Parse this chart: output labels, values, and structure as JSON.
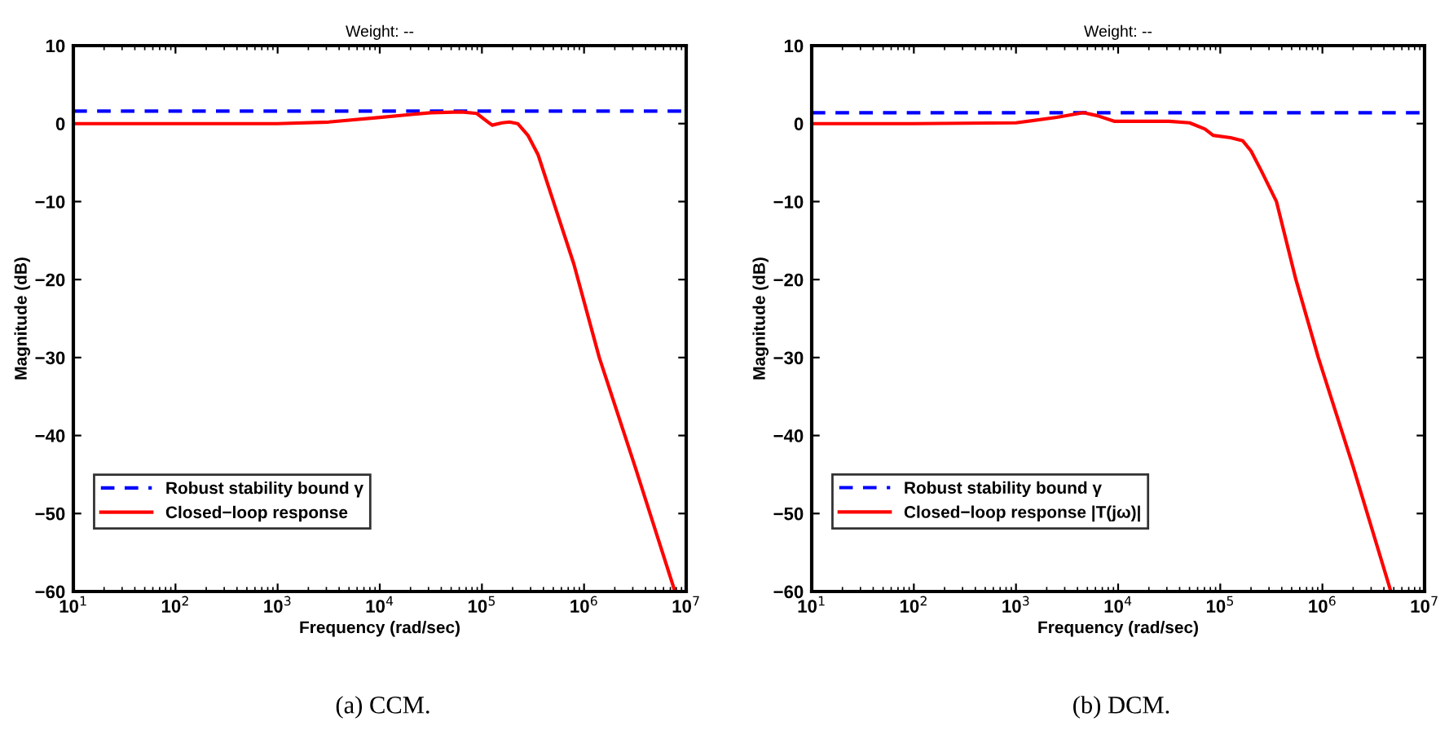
{
  "chart_data": [
    {
      "type": "line",
      "title": "Weight: --",
      "xlabel": "Frequency (rad/sec)",
      "ylabel": "Magnitude (dB)",
      "log": "x",
      "grid": false,
      "legend": "bottom left",
      "xlim": [
        10,
        10000000
      ],
      "ylim": [
        -60,
        10
      ],
      "xticks": [
        {
          "value": 10,
          "label": "10$^{1}$"
        },
        {
          "value": 100,
          "label": "10$^{2}$"
        },
        {
          "value": 1000,
          "label": "10$^{3}$"
        },
        {
          "value": 10000,
          "label": "10$^{4}$"
        },
        {
          "value": 100000,
          "label": "10$^{5}$"
        },
        {
          "value": 1000000,
          "label": "10$^{6}$"
        },
        {
          "value": 10000000,
          "label": "10$^{7}$"
        }
      ],
      "yticks": [
        {
          "value": 10,
          "label": "10"
        },
        {
          "value": 0,
          "label": "0"
        },
        {
          "value": -10,
          "label": "−10"
        },
        {
          "value": -20,
          "label": "−20"
        },
        {
          "value": -30,
          "label": "−30"
        },
        {
          "value": -40,
          "label": "−40"
        },
        {
          "value": -50,
          "label": "−50"
        },
        {
          "value": -60,
          "label": "−60"
        }
      ],
      "series": [
        {
          "name": "Robust stability bound γ",
          "color": "#0000ff",
          "line_style": "dashed",
          "x": [
            10,
            10000000
          ],
          "values": [
            1.6,
            1.6
          ]
        },
        {
          "name": "Closed−loop response",
          "color": "#ff0000",
          "line_style": "solid",
          "x": [
            10,
            100,
            1000,
            3160,
            10000,
            31600,
            63100,
            89100,
            112000,
            126000,
            158000,
            186000,
            224000,
            282000,
            355000,
            501000,
            794000,
            1410000,
            3160000,
            7760000
          ],
          "values": [
            0,
            0,
            0,
            0.2,
            0.8,
            1.4,
            1.5,
            1.3,
            0.3,
            -0.2,
            0.1,
            0.2,
            0,
            -1.5,
            -4,
            -10,
            -18,
            -30,
            -44,
            -60
          ]
        }
      ],
      "annotations": [
        "(a) CCM."
      ]
    },
    {
      "type": "line",
      "title": "Weight: --",
      "xlabel": "Frequency (rad/sec)",
      "ylabel": "Magnitude (dB)",
      "log": "x",
      "grid": false,
      "legend": "bottom left",
      "xlim": [
        10,
        10000000
      ],
      "ylim": [
        -60,
        10
      ],
      "xticks": [
        {
          "value": 10,
          "label": "10$^{1}$"
        },
        {
          "value": 100,
          "label": "10$^{2}$"
        },
        {
          "value": 1000,
          "label": "10$^{3}$"
        },
        {
          "value": 10000,
          "label": "10$^{4}$"
        },
        {
          "value": 100000,
          "label": "10$^{5}$"
        },
        {
          "value": 1000000,
          "label": "10$^{6}$"
        },
        {
          "value": 10000000,
          "label": "10$^{7}$"
        }
      ],
      "yticks": [
        {
          "value": 10,
          "label": "10"
        },
        {
          "value": 0,
          "label": "0"
        },
        {
          "value": -10,
          "label": "−10"
        },
        {
          "value": -20,
          "label": "−20"
        },
        {
          "value": -30,
          "label": "−30"
        },
        {
          "value": -40,
          "label": "−40"
        },
        {
          "value": -50,
          "label": "−50"
        },
        {
          "value": -60,
          "label": "−60"
        }
      ],
      "series": [
        {
          "name": "Robust stability bound γ",
          "color": "#0000ff",
          "line_style": "dashed",
          "x": [
            10,
            10000000
          ],
          "values": [
            1.4,
            1.4
          ]
        },
        {
          "name": "Closed−loop response |T(jω)|",
          "color": "#ff0000",
          "line_style": "solid",
          "x": [
            10,
            100,
            1000,
            2510,
            4570,
            6310,
            9120,
            31600,
            50100,
            70800,
            85100,
            126000,
            166000,
            200000,
            251000,
            355000,
            550000,
            912000,
            2000000,
            4680000
          ],
          "values": [
            0,
            0,
            0.1,
            0.8,
            1.4,
            1.0,
            0.3,
            0.3,
            0.1,
            -0.7,
            -1.5,
            -1.8,
            -2.2,
            -3.5,
            -6,
            -10,
            -20,
            -30,
            -44,
            -60
          ]
        }
      ],
      "annotations": [
        "(b) DCM."
      ]
    }
  ]
}
